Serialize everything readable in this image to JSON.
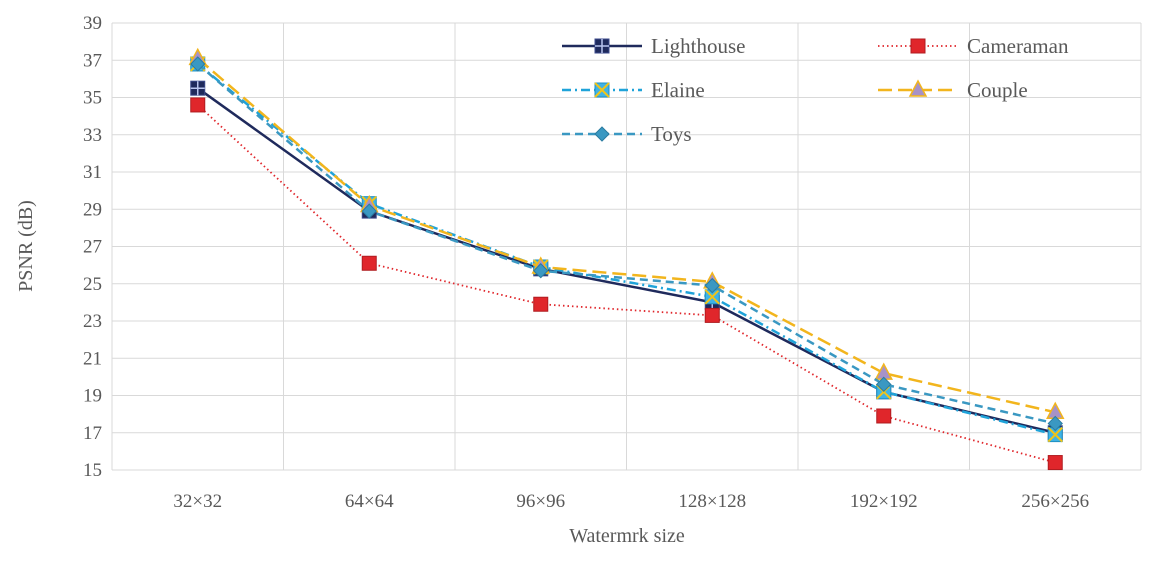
{
  "chart_data": {
    "type": "line",
    "title": "",
    "xlabel": "Watermrk size",
    "ylabel": "PSNR (dB)",
    "categories": [
      "32×32",
      "64×64",
      "96×96",
      "128×128",
      "192×192",
      "256×256"
    ],
    "ylim": [
      15,
      39
    ],
    "yticks": [
      15,
      17,
      19,
      21,
      23,
      25,
      27,
      29,
      31,
      33,
      35,
      37,
      39
    ],
    "grid": true,
    "legend_position": "top-right",
    "series": [
      {
        "name": "Lighthouse",
        "values": [
          35.5,
          28.9,
          25.8,
          24.0,
          19.2,
          17.0
        ],
        "color": "#1f2a5c",
        "dash": "solid",
        "marker": "square-plus"
      },
      {
        "name": "Cameraman",
        "values": [
          34.6,
          26.1,
          23.9,
          23.3,
          17.9,
          15.4
        ],
        "color": "#e0262b",
        "dash": "dotted",
        "marker": "square"
      },
      {
        "name": "Elaine",
        "values": [
          36.8,
          29.3,
          25.9,
          24.3,
          19.2,
          16.9
        ],
        "color": "#1fa3d9",
        "dash": "dashdot",
        "marker": "square-x"
      },
      {
        "name": "Couple",
        "values": [
          37.1,
          29.2,
          25.9,
          25.1,
          20.2,
          18.1
        ],
        "color": "#f2b51d",
        "dash": "longdash",
        "marker": "triangle"
      },
      {
        "name": "Toys",
        "values": [
          36.8,
          28.9,
          25.7,
          24.9,
          19.6,
          17.5
        ],
        "color": "#3a98c2",
        "dash": "dashed",
        "marker": "diamond"
      }
    ]
  }
}
